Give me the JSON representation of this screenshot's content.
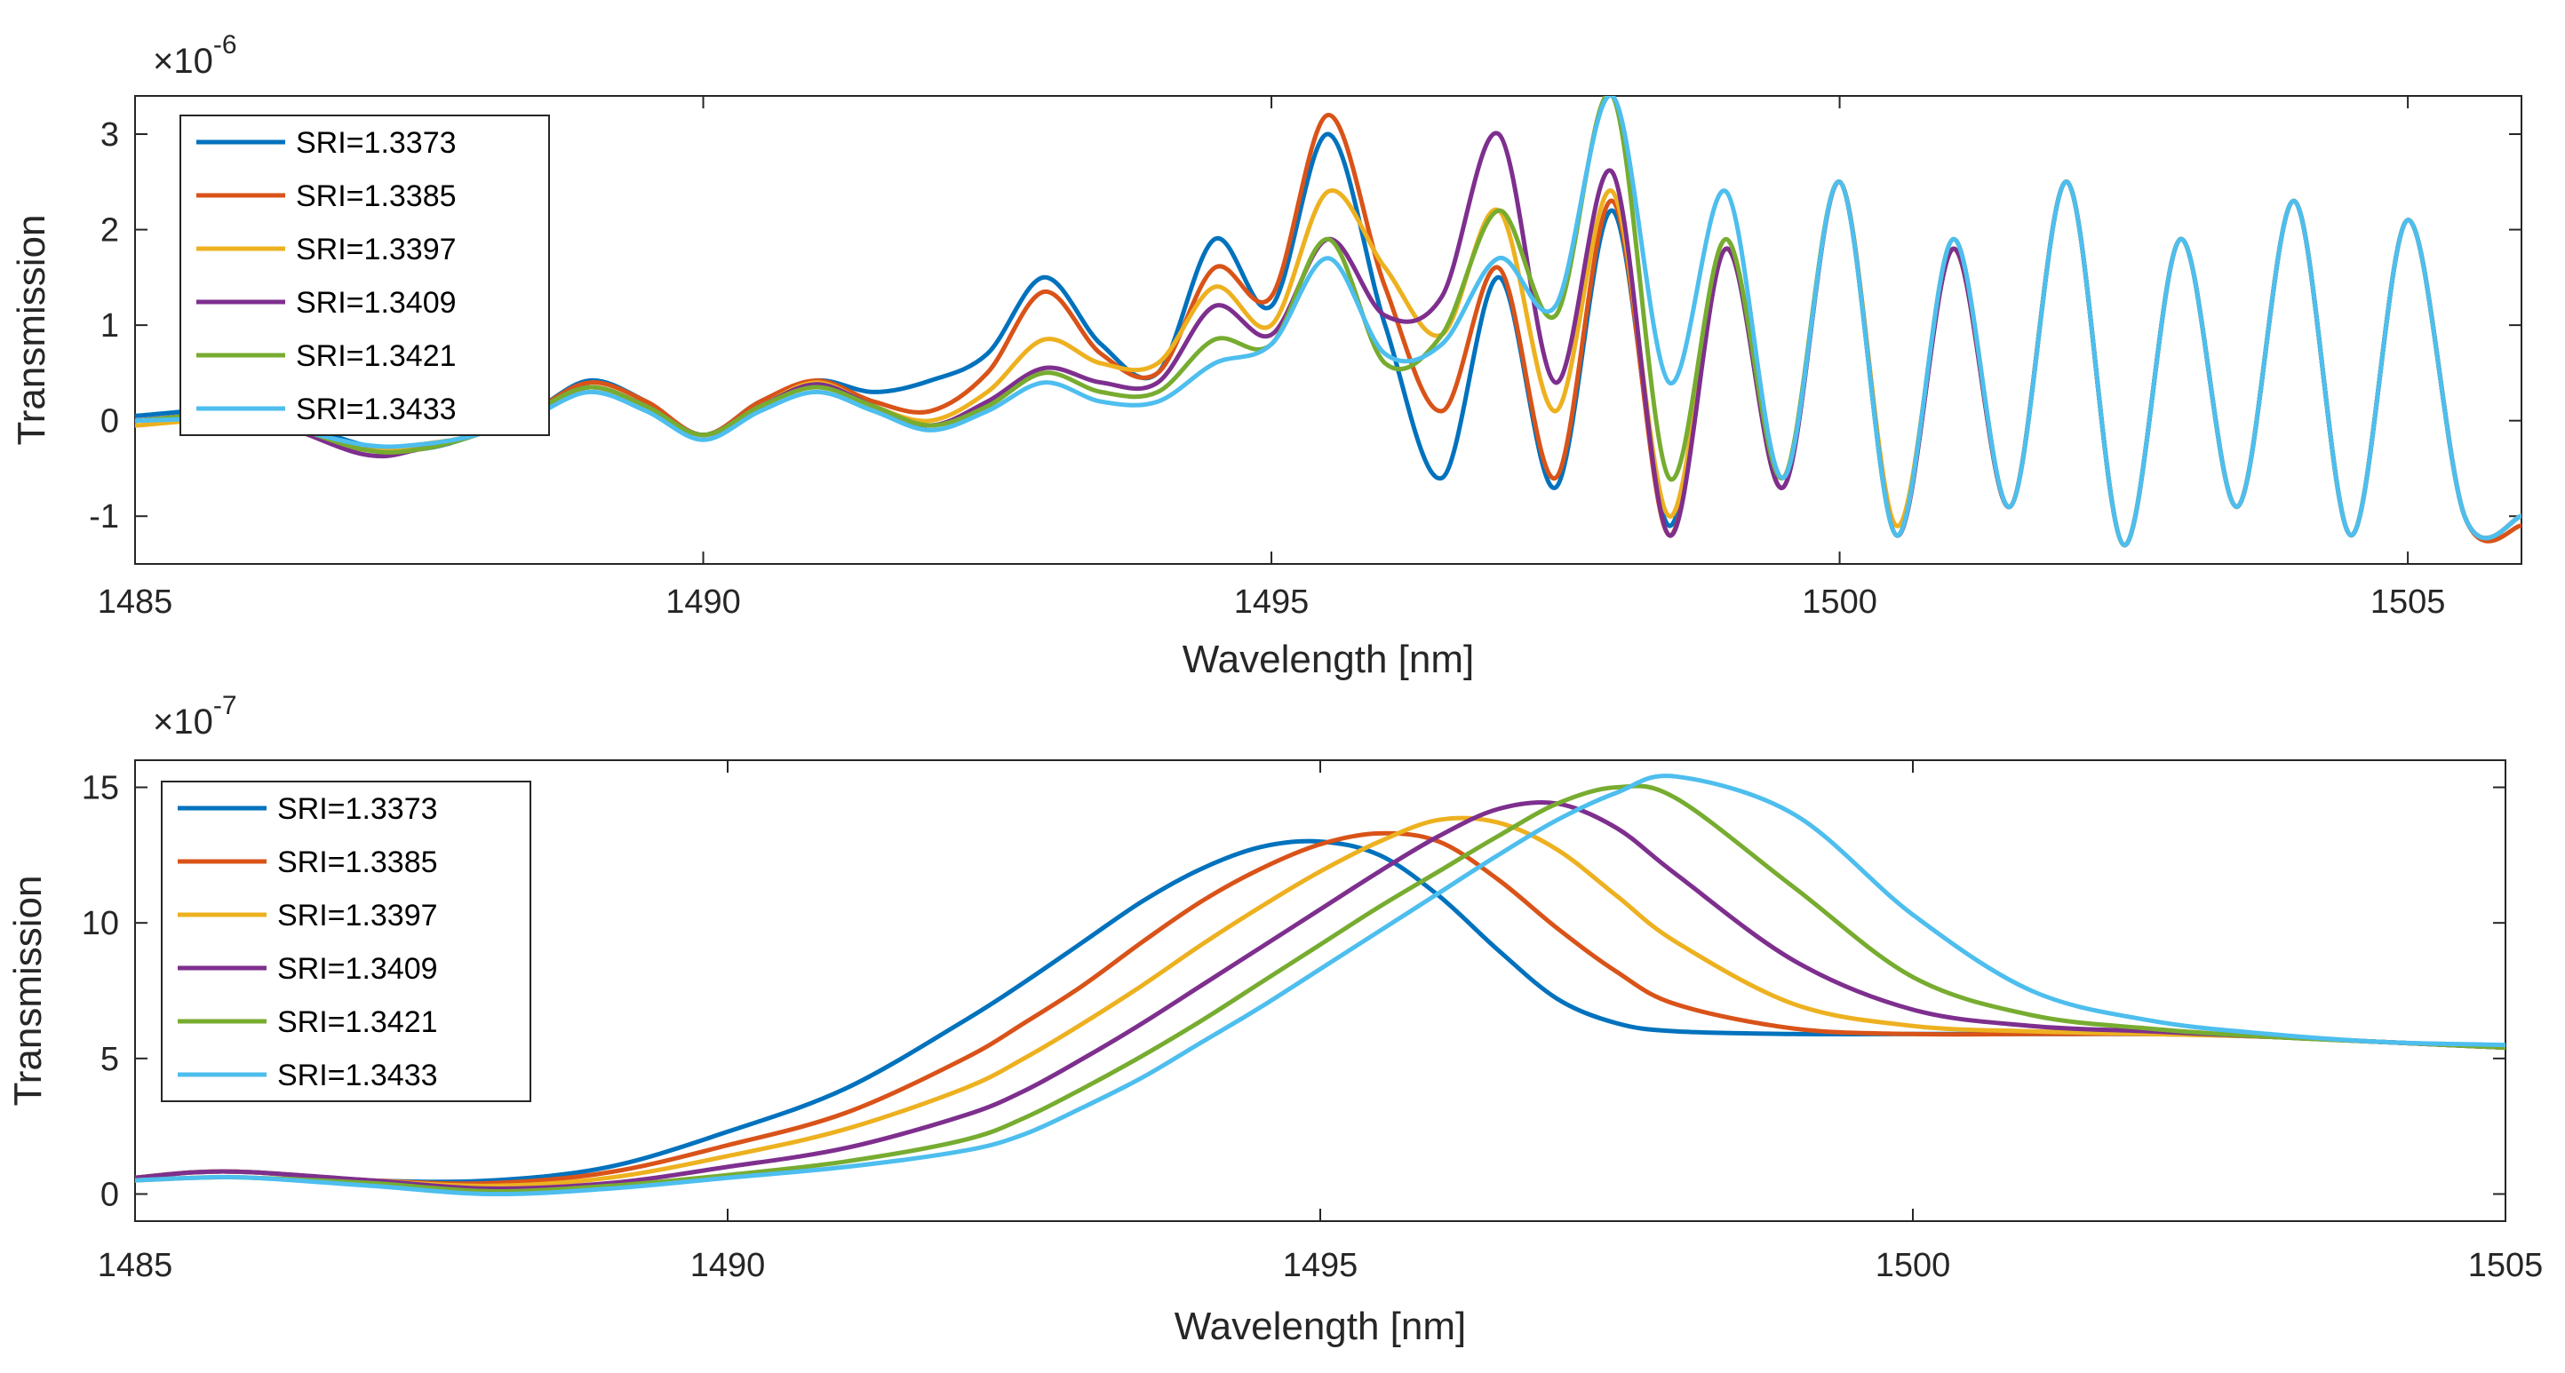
{
  "chart_data": [
    {
      "type": "line",
      "title": "",
      "xlabel": "Wavelength [nm]",
      "ylabel": "Transmission",
      "y_multiplier": {
        "base": "×10",
        "exponent": "-6"
      },
      "xlim": [
        1485,
        1506
      ],
      "ylim": [
        -1.5,
        3.4
      ],
      "xticks": [
        1485,
        1490,
        1495,
        1500,
        1505
      ],
      "xtick_labels": [
        "1485",
        "1490",
        "1495",
        "1500",
        "1505"
      ],
      "yticks": [
        -1,
        0,
        1,
        2,
        3
      ],
      "ytick_labels": [
        "-1",
        "0",
        "1",
        "2",
        "3"
      ],
      "grid": false,
      "legend_position": "top-left",
      "series": [
        {
          "name": "SRI=1.3373",
          "color": "#0072BD",
          "x": [
            1485,
            1486,
            1487,
            1487.5,
            1488,
            1488.5,
            1489,
            1489.5,
            1490,
            1490.5,
            1491,
            1491.5,
            1492,
            1492.5,
            1493,
            1493.5,
            1494,
            1494.5,
            1495,
            1495.5,
            1496,
            1496.5,
            1497,
            1497.5,
            1498,
            1498.5,
            1499,
            1499.5,
            1500,
            1500.5,
            1501,
            1501.5,
            1502,
            1502.5,
            1503,
            1503.5,
            1504,
            1504.5,
            1505,
            1505.5,
            1506
          ],
          "y": [
            0.05,
            0.1,
            -0.25,
            -0.3,
            -0.15,
            0.1,
            0.42,
            0.2,
            -0.15,
            0.2,
            0.42,
            0.3,
            0.42,
            0.7,
            1.5,
            0.8,
            0.5,
            1.9,
            1.2,
            3.0,
            1.0,
            -0.6,
            1.5,
            -0.7,
            2.2,
            -1.1,
            1.8,
            -0.7,
            2.5,
            -1.2,
            1.8,
            -0.9,
            2.5,
            -1.3,
            1.9,
            -0.9,
            2.3,
            -1.2,
            2.1,
            -1.0,
            -1.0
          ]
        },
        {
          "name": "SRI=1.3385",
          "color": "#D95319",
          "x": [
            1485,
            1486,
            1487,
            1487.5,
            1488,
            1488.5,
            1489,
            1489.5,
            1490,
            1490.5,
            1491,
            1491.5,
            1492,
            1492.5,
            1493,
            1493.5,
            1494,
            1494.5,
            1495,
            1495.5,
            1496,
            1496.5,
            1497,
            1497.5,
            1498,
            1498.5,
            1499,
            1499.5,
            1500,
            1500.5,
            1501,
            1501.5,
            1502,
            1502.5,
            1503,
            1503.5,
            1504,
            1504.5,
            1505,
            1505.5,
            1506
          ],
          "y": [
            0.0,
            0.05,
            -0.3,
            -0.25,
            -0.15,
            0.1,
            0.4,
            0.2,
            -0.15,
            0.2,
            0.42,
            0.2,
            0.1,
            0.5,
            1.35,
            0.7,
            0.5,
            1.6,
            1.3,
            3.2,
            1.4,
            0.1,
            1.6,
            -0.6,
            2.3,
            -1.2,
            1.8,
            -0.7,
            2.5,
            -1.2,
            1.8,
            -0.9,
            2.5,
            -1.3,
            1.9,
            -0.9,
            2.3,
            -1.2,
            2.1,
            -1.0,
            -1.1
          ]
        },
        {
          "name": "SRI=1.3397",
          "color": "#EDB120",
          "x": [
            1485,
            1486,
            1487,
            1487.5,
            1488,
            1488.5,
            1489,
            1489.5,
            1490,
            1490.5,
            1491,
            1491.5,
            1492,
            1492.5,
            1493,
            1493.5,
            1494,
            1494.5,
            1495,
            1495.5,
            1496,
            1496.5,
            1497,
            1497.5,
            1498,
            1498.5,
            1499,
            1499.5,
            1500,
            1500.5,
            1501,
            1501.5,
            1502,
            1502.5,
            1503,
            1503.5,
            1504,
            1504.5,
            1505,
            1505.5,
            1506
          ],
          "y": [
            -0.05,
            0.0,
            -0.3,
            -0.25,
            -0.15,
            0.05,
            0.35,
            0.15,
            -0.15,
            0.15,
            0.4,
            0.15,
            0.0,
            0.3,
            0.85,
            0.6,
            0.6,
            1.4,
            1.0,
            2.4,
            1.6,
            0.9,
            2.2,
            0.1,
            2.4,
            -1.0,
            1.8,
            -0.6,
            2.5,
            -1.1,
            1.8,
            -0.9,
            2.5,
            -1.3,
            1.9,
            -0.9,
            2.3,
            -1.2,
            2.1,
            -1.0,
            -1.0
          ]
        },
        {
          "name": "SRI=1.3409",
          "color": "#7E2F8E",
          "x": [
            1485,
            1486,
            1487,
            1487.5,
            1488,
            1488.5,
            1489,
            1489.5,
            1490,
            1490.5,
            1491,
            1491.5,
            1492,
            1492.5,
            1493,
            1493.5,
            1494,
            1494.5,
            1495,
            1495.5,
            1496,
            1496.5,
            1497,
            1497.5,
            1498,
            1498.5,
            1499,
            1499.5,
            1500,
            1500.5,
            1501,
            1501.5,
            1502,
            1502.5,
            1503,
            1503.5,
            1504,
            1504.5,
            1505,
            1505.5,
            1506
          ],
          "y": [
            0.0,
            0.05,
            -0.35,
            -0.3,
            -0.15,
            0.1,
            0.35,
            0.15,
            -0.15,
            0.15,
            0.38,
            0.15,
            -0.05,
            0.2,
            0.55,
            0.4,
            0.4,
            1.2,
            0.9,
            1.9,
            1.1,
            1.3,
            3.0,
            0.4,
            2.6,
            -1.2,
            1.8,
            -0.7,
            2.5,
            -1.2,
            1.8,
            -0.9,
            2.5,
            -1.3,
            1.9,
            -0.9,
            2.3,
            -1.2,
            2.1,
            -1.0,
            -1.0
          ]
        },
        {
          "name": "SRI=1.3421",
          "color": "#77AC30",
          "x": [
            1485,
            1486,
            1487,
            1487.5,
            1488,
            1488.5,
            1489,
            1489.5,
            1490,
            1490.5,
            1491,
            1491.5,
            1492,
            1492.5,
            1493,
            1493.5,
            1494,
            1494.5,
            1495,
            1495.5,
            1496,
            1496.5,
            1497,
            1497.5,
            1498,
            1498.5,
            1499,
            1499.5,
            1500,
            1500.5,
            1501,
            1501.5,
            1502,
            1502.5,
            1503,
            1503.5,
            1504,
            1504.5,
            1505,
            1505.5,
            1506
          ],
          "y": [
            0.0,
            0.05,
            -0.3,
            -0.3,
            -0.15,
            0.1,
            0.35,
            0.15,
            -0.15,
            0.15,
            0.35,
            0.15,
            -0.05,
            0.15,
            0.5,
            0.3,
            0.3,
            0.85,
            0.8,
            1.9,
            0.6,
            0.9,
            2.2,
            1.1,
            3.4,
            -0.6,
            1.9,
            -0.6,
            2.5,
            -1.2,
            1.9,
            -0.9,
            2.5,
            -1.3,
            1.9,
            -0.9,
            2.3,
            -1.2,
            2.1,
            -1.0,
            -1.0
          ]
        },
        {
          "name": "SRI=1.3433",
          "color": "#4DBEEE",
          "x": [
            1485,
            1486,
            1487,
            1487.5,
            1488,
            1488.5,
            1489,
            1489.5,
            1490,
            1490.5,
            1491,
            1491.5,
            1492,
            1492.5,
            1493,
            1493.5,
            1494,
            1494.5,
            1495,
            1495.5,
            1496,
            1496.5,
            1497,
            1497.5,
            1498,
            1498.5,
            1499,
            1499.5,
            1500,
            1500.5,
            1501,
            1501.5,
            1502,
            1502.5,
            1503,
            1503.5,
            1504,
            1504.5,
            1505,
            1505.5,
            1506
          ],
          "y": [
            0.0,
            0.0,
            -0.25,
            -0.25,
            -0.15,
            0.05,
            0.3,
            0.1,
            -0.2,
            0.1,
            0.3,
            0.1,
            -0.1,
            0.1,
            0.4,
            0.2,
            0.2,
            0.6,
            0.8,
            1.7,
            0.7,
            0.8,
            1.7,
            1.2,
            3.4,
            0.4,
            2.4,
            -0.6,
            2.5,
            -1.2,
            1.9,
            -0.9,
            2.5,
            -1.3,
            1.9,
            -0.9,
            2.3,
            -1.2,
            2.1,
            -1.0,
            -1.0
          ]
        }
      ]
    },
    {
      "type": "line",
      "title": "",
      "xlabel": "Wavelength [nm]",
      "ylabel": "Transmission",
      "y_multiplier": {
        "base": "×10",
        "exponent": "-7"
      },
      "xlim": [
        1485,
        1505
      ],
      "ylim": [
        -1,
        16
      ],
      "xticks": [
        1485,
        1490,
        1495,
        1500,
        1505
      ],
      "xtick_labels": [
        "1485",
        "1490",
        "1495",
        "1500",
        "1505"
      ],
      "yticks": [
        0,
        5,
        10,
        15
      ],
      "ytick_labels": [
        "0",
        "5",
        "10",
        "15"
      ],
      "grid": false,
      "legend_position": "top-left",
      "series": [
        {
          "name": "SRI=1.3373",
          "color": "#0072BD",
          "x": [
            1485,
            1485.5,
            1486,
            1487,
            1488,
            1489,
            1490,
            1491,
            1492,
            1492.5,
            1493,
            1493.5,
            1494,
            1494.5,
            1495,
            1495.5,
            1496,
            1496.5,
            1497,
            1497.5,
            1498,
            1499,
            1500,
            1501,
            1502,
            1503,
            1504,
            1505
          ],
          "y": [
            0.6,
            0.8,
            0.8,
            0.5,
            0.5,
            1.0,
            2.3,
            3.9,
            6.4,
            7.8,
            9.3,
            10.8,
            12.0,
            12.8,
            13.0,
            12.5,
            11.0,
            9.0,
            7.2,
            6.3,
            6.0,
            5.9,
            5.9,
            5.9,
            5.9,
            5.8,
            5.6,
            5.4
          ]
        },
        {
          "name": "SRI=1.3385",
          "color": "#D95319",
          "x": [
            1485,
            1485.5,
            1486,
            1487,
            1488,
            1489,
            1490,
            1491,
            1492,
            1492.5,
            1493,
            1493.5,
            1494,
            1494.5,
            1495,
            1495.5,
            1496,
            1496.5,
            1497,
            1497.5,
            1498,
            1499,
            1500,
            1501,
            1502,
            1503,
            1504,
            1505
          ],
          "y": [
            0.6,
            0.8,
            0.8,
            0.5,
            0.4,
            0.8,
            1.8,
            3.0,
            5.0,
            6.3,
            7.7,
            9.3,
            10.8,
            12.0,
            12.9,
            13.3,
            13.0,
            11.6,
            9.8,
            8.2,
            7.0,
            6.1,
            5.9,
            5.9,
            5.9,
            5.8,
            5.6,
            5.4
          ]
        },
        {
          "name": "SRI=1.3397",
          "color": "#EDB120",
          "x": [
            1485,
            1485.5,
            1486,
            1487,
            1488,
            1489,
            1490,
            1491,
            1492,
            1492.5,
            1493,
            1493.5,
            1494,
            1494.5,
            1495,
            1495.5,
            1496,
            1496.5,
            1497,
            1497.5,
            1498,
            1499,
            1500,
            1501,
            1502,
            1503,
            1504,
            1505
          ],
          "y": [
            0.6,
            0.8,
            0.8,
            0.5,
            0.3,
            0.6,
            1.4,
            2.4,
            3.9,
            5.0,
            6.3,
            7.7,
            9.2,
            10.6,
            11.9,
            13.0,
            13.8,
            13.7,
            12.7,
            11.0,
            9.3,
            7.0,
            6.2,
            6.0,
            5.9,
            5.8,
            5.6,
            5.4
          ]
        },
        {
          "name": "SRI=1.3409",
          "color": "#7E2F8E",
          "x": [
            1485,
            1485.5,
            1486,
            1487,
            1488,
            1489,
            1490,
            1491,
            1492,
            1492.5,
            1493,
            1493.5,
            1494,
            1494.5,
            1495,
            1495.5,
            1496,
            1496.5,
            1497,
            1497.5,
            1498,
            1499,
            1500,
            1501,
            1502,
            1503,
            1504,
            1505
          ],
          "y": [
            0.6,
            0.8,
            0.8,
            0.5,
            0.2,
            0.4,
            1.0,
            1.7,
            2.9,
            3.8,
            5.0,
            6.3,
            7.7,
            9.1,
            10.5,
            11.9,
            13.2,
            14.2,
            14.4,
            13.5,
            11.8,
            8.6,
            6.8,
            6.2,
            6.0,
            5.8,
            5.6,
            5.4
          ]
        },
        {
          "name": "SRI=1.3421",
          "color": "#77AC30",
          "x": [
            1485,
            1485.5,
            1486,
            1487,
            1488,
            1489,
            1490,
            1491,
            1492,
            1492.5,
            1493,
            1493.5,
            1494,
            1494.5,
            1495,
            1495.5,
            1496,
            1496.5,
            1497,
            1497.5,
            1498,
            1499,
            1500,
            1501,
            1502,
            1503,
            1504,
            1505
          ],
          "y": [
            0.5,
            0.6,
            0.6,
            0.4,
            0.1,
            0.3,
            0.7,
            1.2,
            2.0,
            2.8,
            3.9,
            5.1,
            6.4,
            7.8,
            9.2,
            10.6,
            11.9,
            13.2,
            14.4,
            15.0,
            14.6,
            11.3,
            8.0,
            6.6,
            6.1,
            5.8,
            5.6,
            5.4
          ]
        },
        {
          "name": "SRI=1.3433",
          "color": "#4DBEEE",
          "x": [
            1485,
            1485.5,
            1486,
            1487,
            1488,
            1489,
            1490,
            1491,
            1492,
            1492.5,
            1493,
            1493.5,
            1494,
            1494.5,
            1495,
            1495.5,
            1496,
            1496.5,
            1497,
            1497.5,
            1498,
            1499,
            1500,
            1501,
            1502,
            1503,
            1504,
            1505
          ],
          "y": [
            0.5,
            0.6,
            0.6,
            0.3,
            0.0,
            0.2,
            0.6,
            1.0,
            1.6,
            2.2,
            3.2,
            4.3,
            5.6,
            6.9,
            8.3,
            9.7,
            11.1,
            12.5,
            13.8,
            14.8,
            15.4,
            14.0,
            10.3,
            7.5,
            6.4,
            5.9,
            5.6,
            5.5
          ]
        }
      ]
    }
  ]
}
